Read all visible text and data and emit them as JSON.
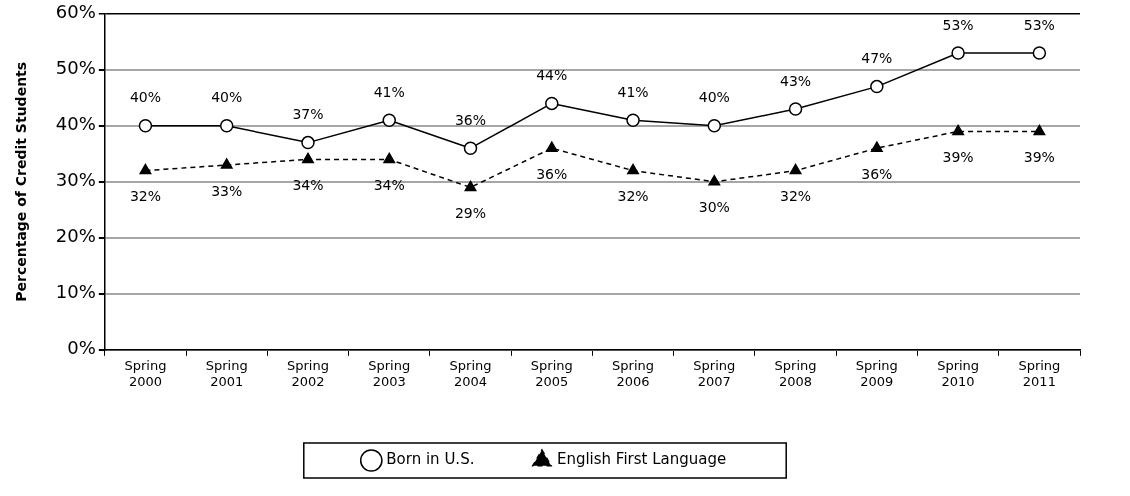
{
  "chart_data": {
    "type": "line",
    "ylabel": "Percentage of Credit Students",
    "categories": [
      "Spring 2000",
      "Spring 2001",
      "Spring 2002",
      "Spring 2003",
      "Spring 2004",
      "Spring 2005",
      "Spring 2006",
      "Spring 2007",
      "Spring 2008",
      "Spring 2009",
      "Spring 2010",
      "Spring 2011"
    ],
    "series": [
      {
        "name": "Born in U.S.",
        "color": "#000000",
        "marker": "circle",
        "line_style": "solid",
        "values": [
          40,
          40,
          37,
          41,
          36,
          44,
          41,
          40,
          43,
          47,
          53,
          53
        ],
        "value_labels": [
          "40%",
          "40%",
          "37%",
          "41%",
          "36%",
          "44%",
          "41%",
          "40%",
          "43%",
          "47%",
          "53%",
          "53%"
        ]
      },
      {
        "name": "English First Language",
        "color": "#000000",
        "marker": "triangle",
        "line_style": "dashed",
        "values": [
          32,
          33,
          34,
          34,
          29,
          36,
          32,
          30,
          32,
          36,
          39,
          39
        ],
        "value_labels": [
          "32%",
          "33%",
          "34%",
          "34%",
          "29%",
          "36%",
          "32%",
          "30%",
          "32%",
          "36%",
          "39%",
          "39%"
        ]
      }
    ],
    "ylim": [
      0,
      60
    ],
    "yticks": [
      {
        "value": 0,
        "label": "0%"
      },
      {
        "value": 10,
        "label": "10%"
      },
      {
        "value": 20,
        "label": "20%"
      },
      {
        "value": 30,
        "label": "30%"
      },
      {
        "value": 40,
        "label": "40%"
      },
      {
        "value": 50,
        "label": "50%"
      },
      {
        "value": 60,
        "label": "60%"
      }
    ],
    "grid": "y",
    "legend": "bottom"
  }
}
